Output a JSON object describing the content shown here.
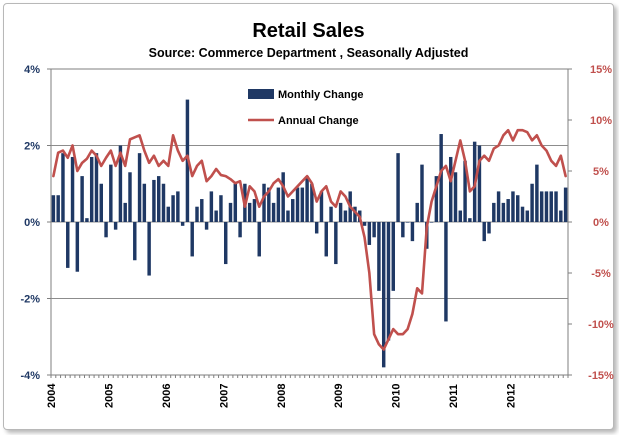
{
  "chart_data": {
    "type": "bar+line",
    "title": "Retail Sales",
    "subtitle": "Source: Commerce Department , Seasonally Adjusted",
    "left_axis": {
      "ylim": [
        -4,
        4
      ],
      "ticks": [
        "-4%",
        "-2%",
        "0%",
        "2%",
        "4%"
      ],
      "tick_values": [
        -4,
        -2,
        0,
        2,
        4
      ]
    },
    "right_axis": {
      "ylim": [
        -15,
        15
      ],
      "ticks": [
        "-15%",
        "-10%",
        "-5%",
        "0%",
        "5%",
        "10%",
        "15%"
      ],
      "tick_values": [
        -15,
        -10,
        -5,
        0,
        5,
        10,
        15
      ]
    },
    "x_ticks": [
      "2004",
      "2005",
      "2006",
      "2007",
      "2008",
      "2009",
      "2010",
      "2011",
      "2012"
    ],
    "x_start_year": 2004,
    "x_months": 108,
    "grid": true,
    "legend_position": "top-center",
    "series": [
      {
        "name": "Monthly Change",
        "kind": "bar",
        "axis": "left",
        "color": "#1f3864",
        "values": [
          0.7,
          0.7,
          1.8,
          -1.2,
          1.7,
          -1.3,
          1.2,
          0.1,
          1.7,
          1.8,
          1.0,
          -0.4,
          1.5,
          -0.2,
          2.0,
          0.5,
          1.3,
          -1.0,
          1.8,
          1.0,
          -1.4,
          1.1,
          1.2,
          1.0,
          0.4,
          0.7,
          0.8,
          -0.1,
          3.2,
          -0.9,
          0.4,
          0.6,
          -0.2,
          0.8,
          0.3,
          0.7,
          -1.1,
          0.5,
          1.0,
          -0.4,
          1.0,
          0.5,
          0.6,
          -0.9,
          1.0,
          0.9,
          0.5,
          0.9,
          1.3,
          0.3,
          0.6,
          0.9,
          0.9,
          1.2,
          1.0,
          -0.3,
          0.8,
          -0.9,
          0.4,
          -1.1,
          0.5,
          0.3,
          0.8,
          0.4,
          0.3,
          -0.1,
          -0.6,
          -0.4,
          -1.8,
          -3.8,
          -3.1,
          -1.8,
          1.8,
          -0.4,
          0.0,
          -0.5,
          0.5,
          1.5,
          -0.7,
          0.0,
          1.2,
          2.3,
          -2.6,
          1.7,
          1.3,
          0.3,
          1.6,
          0.1,
          2.1,
          2.0,
          -0.5,
          -0.3,
          0.5,
          0.8,
          0.5,
          0.6,
          0.8,
          0.7,
          0.4,
          0.3,
          1.0,
          1.5,
          0.8,
          0.8,
          0.8,
          0.8,
          0.3,
          0.9
        ]
      },
      {
        "name": "Annual Change",
        "kind": "line",
        "axis": "right",
        "color": "#c0504d",
        "values": [
          4.5,
          6.8,
          7.0,
          6.3,
          7.5,
          5.0,
          5.8,
          6.2,
          7.0,
          6.5,
          5.5,
          6.3,
          7.0,
          5.5,
          6.8,
          5.5,
          8.1,
          8.3,
          8.5,
          7.0,
          5.8,
          6.5,
          5.5,
          6.0,
          5.5,
          8.5,
          7.0,
          6.0,
          6.5,
          4.5,
          5.5,
          6.0,
          4.0,
          4.5,
          5.2,
          4.6,
          4.5,
          4.2,
          3.8,
          4.0,
          1.5,
          3.5,
          3.0,
          1.5,
          2.5,
          3.0,
          3.8,
          4.2,
          3.5,
          2.5,
          3.0,
          3.5,
          4.0,
          4.5,
          3.8,
          2.0,
          3.0,
          3.5,
          2.0,
          1.5,
          3.0,
          2.5,
          1.5,
          1.0,
          0.5,
          -1.5,
          -5.0,
          -11.0,
          -12.0,
          -12.5,
          -11.5,
          -10.5,
          -11.0,
          -11.0,
          -10.5,
          -9.0,
          -6.5,
          -7.0,
          -0.5,
          2.0,
          3.5,
          5.0,
          5.5,
          4.0,
          6.0,
          8.0,
          6.0,
          3.0,
          3.5,
          6.0,
          6.5,
          6.0,
          7.2,
          7.5,
          8.5,
          9.0,
          8.0,
          9.0,
          9.0,
          8.8,
          8.0,
          8.5,
          7.5,
          7.0,
          6.0,
          5.5,
          6.5,
          4.5
        ]
      }
    ]
  }
}
